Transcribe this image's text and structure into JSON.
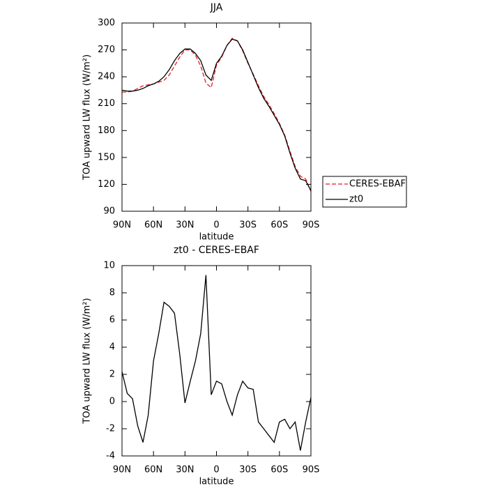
{
  "chart_data": [
    {
      "type": "line",
      "title": "JJA",
      "x_label": "latitude",
      "y_label": "TOA upward LW flux (W/m²)",
      "x": [
        90,
        85,
        80,
        75,
        70,
        65,
        60,
        55,
        50,
        45,
        40,
        35,
        30,
        25,
        20,
        15,
        10,
        5,
        0,
        -5,
        -10,
        -15,
        -20,
        -25,
        -30,
        -35,
        -40,
        -45,
        -50,
        -55,
        -60,
        -65,
        -70,
        -75,
        -80,
        -85,
        -90
      ],
      "xlim": [
        90,
        -90
      ],
      "xticks": [
        {
          "value": 90,
          "label": "90N"
        },
        {
          "value": 60,
          "label": "60N"
        },
        {
          "value": 30,
          "label": "30N"
        },
        0,
        {
          "value": -30,
          "label": "30S"
        },
        {
          "value": -60,
          "label": "60S"
        },
        {
          "value": -90,
          "label": "90S"
        }
      ],
      "ylim": [
        90,
        300
      ],
      "yticks": [
        90,
        120,
        150,
        180,
        210,
        240,
        270,
        300
      ],
      "legend": "right",
      "series": [
        {
          "name": "CERES-EBAF",
          "color": "#e8191c",
          "dashed": true,
          "values": [
            223,
            223,
            224,
            227,
            230,
            231,
            232,
            234,
            236,
            242,
            252,
            262,
            270,
            270,
            264,
            252,
            233,
            228,
            253,
            262,
            275,
            283,
            280,
            269,
            255,
            243,
            230,
            218,
            209,
            199,
            188,
            175,
            157,
            140,
            129,
            126,
            112
          ]
        },
        {
          "name": "zt0",
          "color": "#000000",
          "dashed": false,
          "values": [
            225,
            224,
            224,
            225,
            227,
            230,
            232,
            235,
            240,
            248,
            258,
            266,
            271,
            271,
            266,
            258,
            242,
            236,
            255,
            263,
            275,
            282,
            280,
            270,
            256,
            242,
            228,
            216,
            207,
            197,
            187,
            174,
            155,
            138,
            126,
            124,
            113
          ]
        }
      ]
    },
    {
      "type": "line",
      "title": "zt0 - CERES-EBAF",
      "x_label": "latitude",
      "y_label": "TOA upward LW flux (W/m²)",
      "x": [
        90,
        85,
        80,
        75,
        70,
        65,
        60,
        55,
        50,
        45,
        40,
        35,
        30,
        25,
        20,
        15,
        10,
        5,
        0,
        -5,
        -10,
        -15,
        -20,
        -25,
        -30,
        -35,
        -40,
        -45,
        -50,
        -55,
        -60,
        -65,
        -70,
        -75,
        -80,
        -85,
        -90
      ],
      "xlim": [
        90,
        -90
      ],
      "xticks": [
        {
          "value": 90,
          "label": "90N"
        },
        {
          "value": 60,
          "label": "60N"
        },
        {
          "value": 30,
          "label": "30N"
        },
        0,
        {
          "value": -30,
          "label": "30S"
        },
        {
          "value": -60,
          "label": "60S"
        },
        {
          "value": -90,
          "label": "90S"
        }
      ],
      "ylim": [
        -4,
        10
      ],
      "yticks": [
        -4,
        -2,
        0,
        2,
        4,
        6,
        8,
        10
      ],
      "series": [
        {
          "color": "#000000",
          "dashed": false,
          "values": [
            2.2,
            0.6,
            0.2,
            -1.8,
            -3.0,
            -1.0,
            3.0,
            5.0,
            7.3,
            7.0,
            6.5,
            3.5,
            -0.1,
            1.5,
            3.0,
            5.0,
            9.3,
            0.5,
            1.5,
            1.3,
            0,
            -1.0,
            0.5,
            1.5,
            1.0,
            0.9,
            -1.5,
            -2.0,
            -2.5,
            -3.0,
            -1.5,
            -1.3,
            -2.0,
            -1.5,
            -3.6,
            -1.5,
            0.3
          ]
        }
      ]
    }
  ]
}
